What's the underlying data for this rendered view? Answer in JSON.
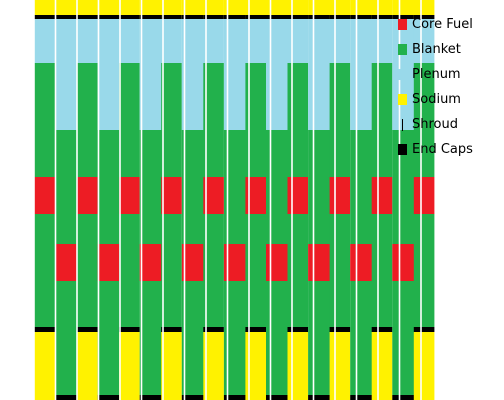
{
  "legend": {
    "items": [
      {
        "label": "Core Fuel",
        "color": "#ed1c24",
        "icon": "red-square"
      },
      {
        "label": "Blanket",
        "color": "#22b14c",
        "icon": "green-square"
      },
      {
        "label": "Plenum",
        "color": "#99d9ea",
        "icon": "light-blue-square"
      },
      {
        "label": "Sodium",
        "color": "#fff200",
        "icon": "yellow-square"
      },
      {
        "label": "Shroud",
        "color": "#000000",
        "icon": "thin-vertical-line"
      },
      {
        "label": "End Caps",
        "color": "#000000",
        "icon": "black-square"
      }
    ]
  }
}
